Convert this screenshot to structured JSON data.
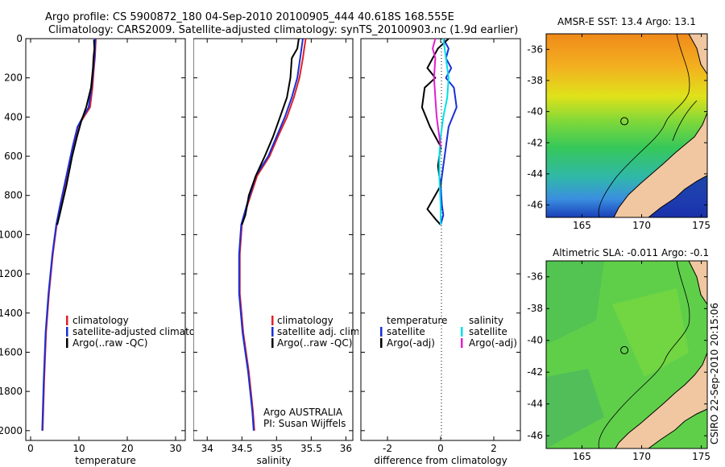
{
  "header": {
    "line1": "Argo profile: CS 5900872_180 04-Sep-2010 20100905_444 40.618S 168.555E",
    "line2": "Climatology: CARS2009. Satellite-adjusted climatology: synTS_20100903.nc (1.9d earlier)"
  },
  "credit": "CSIRO 22-Sep-2010 20:15:06",
  "colors": {
    "climatology": "#e0202a",
    "satellite": "#1a2fd6",
    "argo": "#000000",
    "sal_satellite": "#00e0e8",
    "sal_argo": "#e020d0"
  },
  "chart_data": [
    {
      "type": "line",
      "xlabel": "temperature",
      "ylabel": "",
      "xlim": [
        -1,
        32
      ],
      "ylim": [
        2050,
        0
      ],
      "xticks": [
        "0",
        "10",
        "20",
        "30"
      ],
      "xtick_values": [
        0,
        10,
        20,
        30
      ],
      "yticks": [
        "0",
        "200",
        "400",
        "600",
        "800",
        "1000",
        "1200",
        "1400",
        "1600",
        "1800",
        "2000"
      ],
      "ytick_values": [
        0,
        200,
        400,
        600,
        800,
        1000,
        1200,
        1400,
        1600,
        1800,
        2000
      ],
      "legend": {
        "placement": "middle-right",
        "items": [
          "climatology",
          "satellite-adjusted climatolog",
          "Argo(..raw -QC)"
        ]
      },
      "series": [
        {
          "name": "climatology",
          "color": "#e0202a",
          "x": [
            13.5,
            13.4,
            13.3,
            13.1,
            12.8,
            12.3,
            11.0,
            9.8,
            8.8,
            7.5,
            6.2,
            5.4,
            4.6,
            3.8,
            3.2,
            2.8,
            2.5
          ],
          "y": [
            0,
            50,
            100,
            150,
            250,
            350,
            400,
            450,
            550,
            700,
            850,
            950,
            1100,
            1300,
            1500,
            1750,
            2000
          ]
        },
        {
          "name": "satellite-adjusted climatolog",
          "color": "#1a2fd6",
          "x": [
            13.4,
            13.3,
            13.2,
            13.0,
            12.6,
            12.0,
            10.8,
            9.7,
            8.7,
            7.4,
            6.1,
            5.3,
            4.5,
            3.7,
            3.1,
            2.7,
            2.4
          ],
          "y": [
            0,
            50,
            100,
            150,
            250,
            350,
            400,
            450,
            550,
            700,
            850,
            950,
            1100,
            1300,
            1500,
            1750,
            2000
          ]
        },
        {
          "name": "Argo(..raw -QC)",
          "color": "#000000",
          "x": [
            13.1,
            13.2,
            13.0,
            12.9,
            12.5,
            11.5,
            10.5,
            9.6,
            8.6,
            7.4,
            6.0,
            5.5
          ],
          "y": [
            5,
            50,
            100,
            150,
            250,
            350,
            420,
            500,
            600,
            750,
            900,
            950
          ]
        }
      ]
    },
    {
      "type": "line",
      "xlabel": "salinity",
      "ylabel": "",
      "xlim": [
        33.8,
        36.1
      ],
      "ylim": [
        2050,
        0
      ],
      "xticks": [
        "34",
        "34.5",
        "35",
        "35.5",
        "36"
      ],
      "xtick_values": [
        34,
        34.5,
        35,
        35.5,
        36
      ],
      "legend": {
        "placement": "middle-right",
        "items": [
          "climatology",
          "satellite adj. clim.",
          "Argo(..raw -QC)"
        ]
      },
      "annotation": {
        "line1": "Argo AUSTRALIA",
        "line2": "PI: Susan Wijffels"
      },
      "series": [
        {
          "name": "climatology",
          "color": "#e0202a",
          "x": [
            35.42,
            35.4,
            35.38,
            35.33,
            35.25,
            35.15,
            35.02,
            34.9,
            34.72,
            34.58,
            34.5,
            34.47,
            34.47,
            34.52,
            34.6,
            34.66,
            34.68
          ],
          "y": [
            0,
            50,
            100,
            200,
            300,
            400,
            500,
            600,
            700,
            850,
            950,
            1100,
            1300,
            1500,
            1700,
            1900,
            2000
          ]
        },
        {
          "name": "satellite adj. clim.",
          "color": "#1a2fd6",
          "x": [
            35.38,
            35.36,
            35.34,
            35.3,
            35.22,
            35.12,
            35.0,
            34.88,
            34.7,
            34.57,
            34.49,
            34.46,
            34.46,
            34.51,
            34.59,
            34.65,
            34.67
          ],
          "y": [
            0,
            50,
            100,
            200,
            300,
            400,
            500,
            600,
            700,
            850,
            950,
            1100,
            1300,
            1500,
            1700,
            1900,
            2000
          ]
        },
        {
          "name": "Argo(..raw -QC)",
          "color": "#000000",
          "x": [
            35.32,
            35.3,
            35.22,
            35.2,
            35.15,
            35.05,
            34.95,
            34.83,
            34.7,
            34.6,
            34.55,
            34.5
          ],
          "y": [
            0,
            50,
            100,
            200,
            300,
            400,
            500,
            600,
            700,
            800,
            900,
            950
          ]
        }
      ]
    },
    {
      "type": "line",
      "xlabel": "difference from climatology",
      "ylabel": "",
      "xlim": [
        -3.0,
        3.0
      ],
      "ylim": [
        2050,
        0
      ],
      "xticks": [
        "-2",
        "0",
        "2"
      ],
      "xtick_values": [
        -2,
        0,
        2
      ],
      "legend": {
        "placement": "middle",
        "temperature_heading": "temperature",
        "salinity_heading": "salinity",
        "temperature_items": [
          "satellite",
          "Argo(-adj)"
        ],
        "salinity_items": [
          "satellite",
          "Argo(-adj)"
        ]
      },
      "series": [
        {
          "name": "temperature satellite",
          "color": "#1a2fd6",
          "x": [
            0.1,
            0.3,
            0.2,
            0.4,
            0.2,
            0.5,
            0.6,
            0.3,
            0.2,
            0.1,
            0.0,
            0.05,
            0.1,
            0.0
          ],
          "y": [
            0,
            50,
            100,
            150,
            200,
            250,
            350,
            450,
            550,
            650,
            750,
            850,
            900,
            950
          ]
        },
        {
          "name": "temperature Argo(-adj)",
          "color": "#000000",
          "x": [
            0.3,
            -0.1,
            -0.3,
            -0.5,
            -0.2,
            -0.6,
            -0.7,
            -0.4,
            0.0,
            -0.1,
            0.0,
            -0.5,
            -0.2,
            0.0
          ],
          "y": [
            0,
            50,
            100,
            150,
            200,
            250,
            350,
            450,
            550,
            650,
            750,
            870,
            920,
            950
          ]
        },
        {
          "name": "salinity satellite",
          "color": "#00e0e8",
          "x": [
            0.1,
            0.15,
            0.2,
            0.3,
            0.25,
            0.1,
            0.0,
            -0.05,
            -0.05,
            0.0,
            0.0
          ],
          "y": [
            0,
            50,
            100,
            200,
            300,
            400,
            500,
            600,
            700,
            850,
            950
          ]
        },
        {
          "name": "salinity Argo(-adj)",
          "color": "#e020d0",
          "x": [
            -0.2,
            -0.3,
            -0.2,
            -0.25,
            -0.2,
            -0.15,
            -0.1,
            -0.05,
            0.0
          ],
          "y": [
            0,
            50,
            100,
            200,
            300,
            400,
            450,
            500,
            550
          ]
        }
      ]
    }
  ],
  "maps": {
    "sst": {
      "title": "AMSR-E SST: 13.4 Argo: 13.1"
    },
    "sla": {
      "title": "Altimetric SLA: -0.011 Argo: -0.1"
    },
    "xticks": [
      "165",
      "170",
      "175"
    ],
    "yticks": [
      "-36",
      "-38",
      "-40",
      "-42",
      "-44",
      "-46"
    ],
    "xlim": [
      162,
      175.5
    ],
    "ylim": [
      -35,
      -46.8
    ],
    "float_position": {
      "lon": 168.555,
      "lat": -40.618
    }
  }
}
